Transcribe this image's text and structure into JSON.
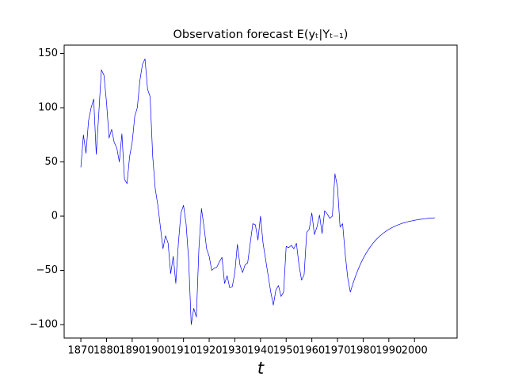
{
  "chart_data": {
    "type": "line",
    "title": "Observation forecast E(yₜ|Yₜ₋₁)",
    "xlabel": "t",
    "x": [
      1870,
      1871,
      1872,
      1873,
      1874,
      1875,
      1876,
      1877,
      1878,
      1879,
      1880,
      1881,
      1882,
      1883,
      1884,
      1885,
      1886,
      1887,
      1888,
      1889,
      1890,
      1891,
      1892,
      1893,
      1894,
      1895,
      1896,
      1897,
      1898,
      1899,
      1900,
      1901,
      1902,
      1903,
      1904,
      1905,
      1906,
      1907,
      1908,
      1909,
      1910,
      1911,
      1912,
      1913,
      1914,
      1915,
      1916,
      1917,
      1918,
      1919,
      1920,
      1921,
      1922,
      1923,
      1924,
      1925,
      1926,
      1927,
      1928,
      1929,
      1930,
      1931,
      1932,
      1933,
      1934,
      1935,
      1936,
      1937,
      1938,
      1939,
      1940,
      1941,
      1942,
      1943,
      1944,
      1945,
      1946,
      1947,
      1948,
      1949,
      1950,
      1951,
      1952,
      1953,
      1954,
      1955,
      1956,
      1957,
      1958,
      1959,
      1960,
      1961,
      1962,
      1963,
      1964,
      1965,
      1966,
      1967,
      1968,
      1969,
      1970,
      1971,
      1972,
      1973,
      1974,
      1975,
      1976,
      1977,
      1978,
      1979,
      1980,
      1981,
      1982,
      1983,
      1984,
      1985,
      1986,
      1987,
      1988,
      1989,
      1990,
      1991,
      1992,
      1993,
      1994,
      1995,
      1996,
      1997,
      1998,
      1999,
      2000,
      2001,
      2002,
      2003,
      2004,
      2005,
      2006,
      2007,
      2008
    ],
    "series": [
      {
        "color": "#0000ff",
        "values": [
          45,
          75,
          58,
          88,
          100,
          108,
          57,
          95,
          135,
          130,
          105,
          72,
          80,
          68,
          63,
          50,
          76,
          34,
          30,
          55,
          68,
          92,
          100,
          125,
          140,
          145,
          117,
          110,
          55,
          25,
          10,
          -10,
          -30,
          -18,
          -25,
          -53,
          -37,
          -62,
          -25,
          3,
          10,
          -7,
          -40,
          -100,
          -85,
          -93,
          -30,
          7,
          -10,
          -30,
          -37,
          -50,
          -48,
          -47,
          -42,
          -38,
          -62,
          -55,
          -66,
          -65,
          -52,
          -26,
          -45,
          -52,
          -45,
          -43,
          -25,
          -7,
          -8,
          -22,
          0,
          -25,
          -40,
          -55,
          -70,
          -82,
          -68,
          -64,
          -74,
          -70,
          -28,
          -29,
          -27,
          -30,
          -25,
          -45,
          -59,
          -54,
          -15,
          -12,
          3,
          -17,
          -10,
          1,
          -16,
          5,
          2,
          -2,
          0,
          39,
          27,
          -10,
          -7,
          -35,
          -57,
          -70,
          -62.3,
          -55.5,
          -49.4,
          -43.9,
          -39.1,
          -34.8,
          -31.0,
          -27.6,
          -24.5,
          -21.8,
          -19.4,
          -17.3,
          -15.4,
          -13.7,
          -12.2,
          -10.9,
          -9.7,
          -8.6,
          -7.7,
          -6.8,
          -6.1,
          -5.4,
          -4.8,
          -4.3,
          -3.8,
          -3.4,
          -3.0,
          -2.7,
          -2.4,
          -2.1,
          -1.9,
          -1.7,
          -1.5
        ]
      }
    ],
    "xlim": [
      1863.5,
      2016.6
    ],
    "ylim": [
      -112.4,
      157.7
    ],
    "xticks": [
      1870,
      1880,
      1890,
      1900,
      1910,
      1920,
      1930,
      1940,
      1950,
      1960,
      1970,
      1980,
      1990,
      2000
    ],
    "yticks": [
      {
        "value": -100,
        "label": "−100"
      },
      {
        "value": -50,
        "label": "−50"
      },
      0,
      50,
      100,
      150
    ],
    "grid": false
  }
}
